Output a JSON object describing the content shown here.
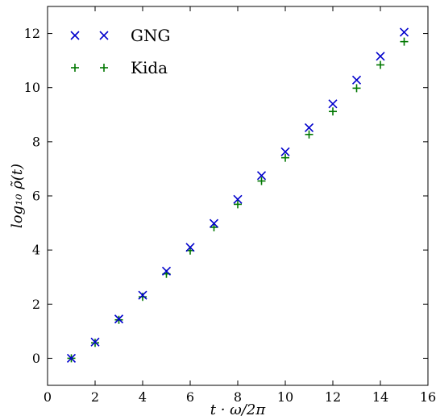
{
  "chart_data": {
    "type": "scatter",
    "xlabel": "t · ω/2π",
    "ylabel": "log₁₀ ρ̃(t)",
    "xlim": [
      0,
      16
    ],
    "ylim": [
      -1,
      13
    ],
    "xticks": [
      0,
      2,
      4,
      6,
      8,
      10,
      12,
      14,
      16
    ],
    "yticks": [
      0,
      2,
      4,
      6,
      8,
      10,
      12
    ],
    "grid": false,
    "legend_position": "top-left",
    "series": [
      {
        "name": "GNG",
        "marker": "x",
        "color": "#0000cc",
        "x": [
          1,
          2,
          3,
          4,
          5,
          6,
          7,
          8,
          9,
          10,
          11,
          12,
          13,
          14,
          15
        ],
        "y": [
          0.0,
          0.6,
          1.45,
          2.33,
          3.22,
          4.1,
          4.98,
          5.87,
          6.75,
          7.63,
          8.52,
          9.4,
          10.28,
          11.16,
          12.05
        ]
      },
      {
        "name": "Kida",
        "marker": "+",
        "color": "#007700",
        "x": [
          1,
          2,
          3,
          4,
          5,
          6,
          7,
          8,
          9,
          10,
          11,
          12,
          13,
          14,
          15
        ],
        "y": [
          0.0,
          0.57,
          1.42,
          2.27,
          3.12,
          3.98,
          4.84,
          5.69,
          6.55,
          7.41,
          8.27,
          9.12,
          9.98,
          10.84,
          11.7
        ]
      }
    ]
  }
}
